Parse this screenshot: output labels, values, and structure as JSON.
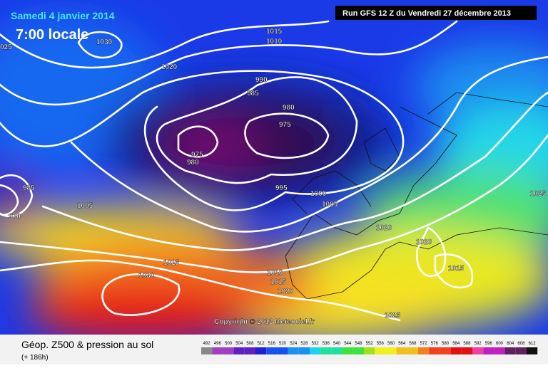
{
  "header": {
    "date": "Samedi 4 janvier 2014",
    "time": "7:00 locale",
    "run": "Run GFS 12 Z du Vendredi 27 décembre 2013"
  },
  "map": {
    "isobar_labels": [
      "025",
      1030,
      1020,
      1015,
      1010,
      990,
      985,
      980,
      975,
      975,
      980,
      995,
      1000,
      1005,
      1005,
      1020,
      1020,
      1015,
      1025,
      1030,
      1010,
      1015,
      1020,
      1025,
      1025,
      985,
      970
    ],
    "copyright": "Copyright © 2013 Meteociel.fr"
  },
  "legend": {
    "title": "Géop. Z500 & pression au sol",
    "lead_time": "(+ 186h)",
    "scale": [
      492,
      496,
      500,
      504,
      508,
      512,
      516,
      520,
      524,
      528,
      532,
      536,
      540,
      544,
      548,
      552,
      556,
      560,
      564,
      568,
      572,
      576,
      580,
      584,
      588,
      592,
      596,
      600,
      604,
      608,
      612
    ]
  }
}
